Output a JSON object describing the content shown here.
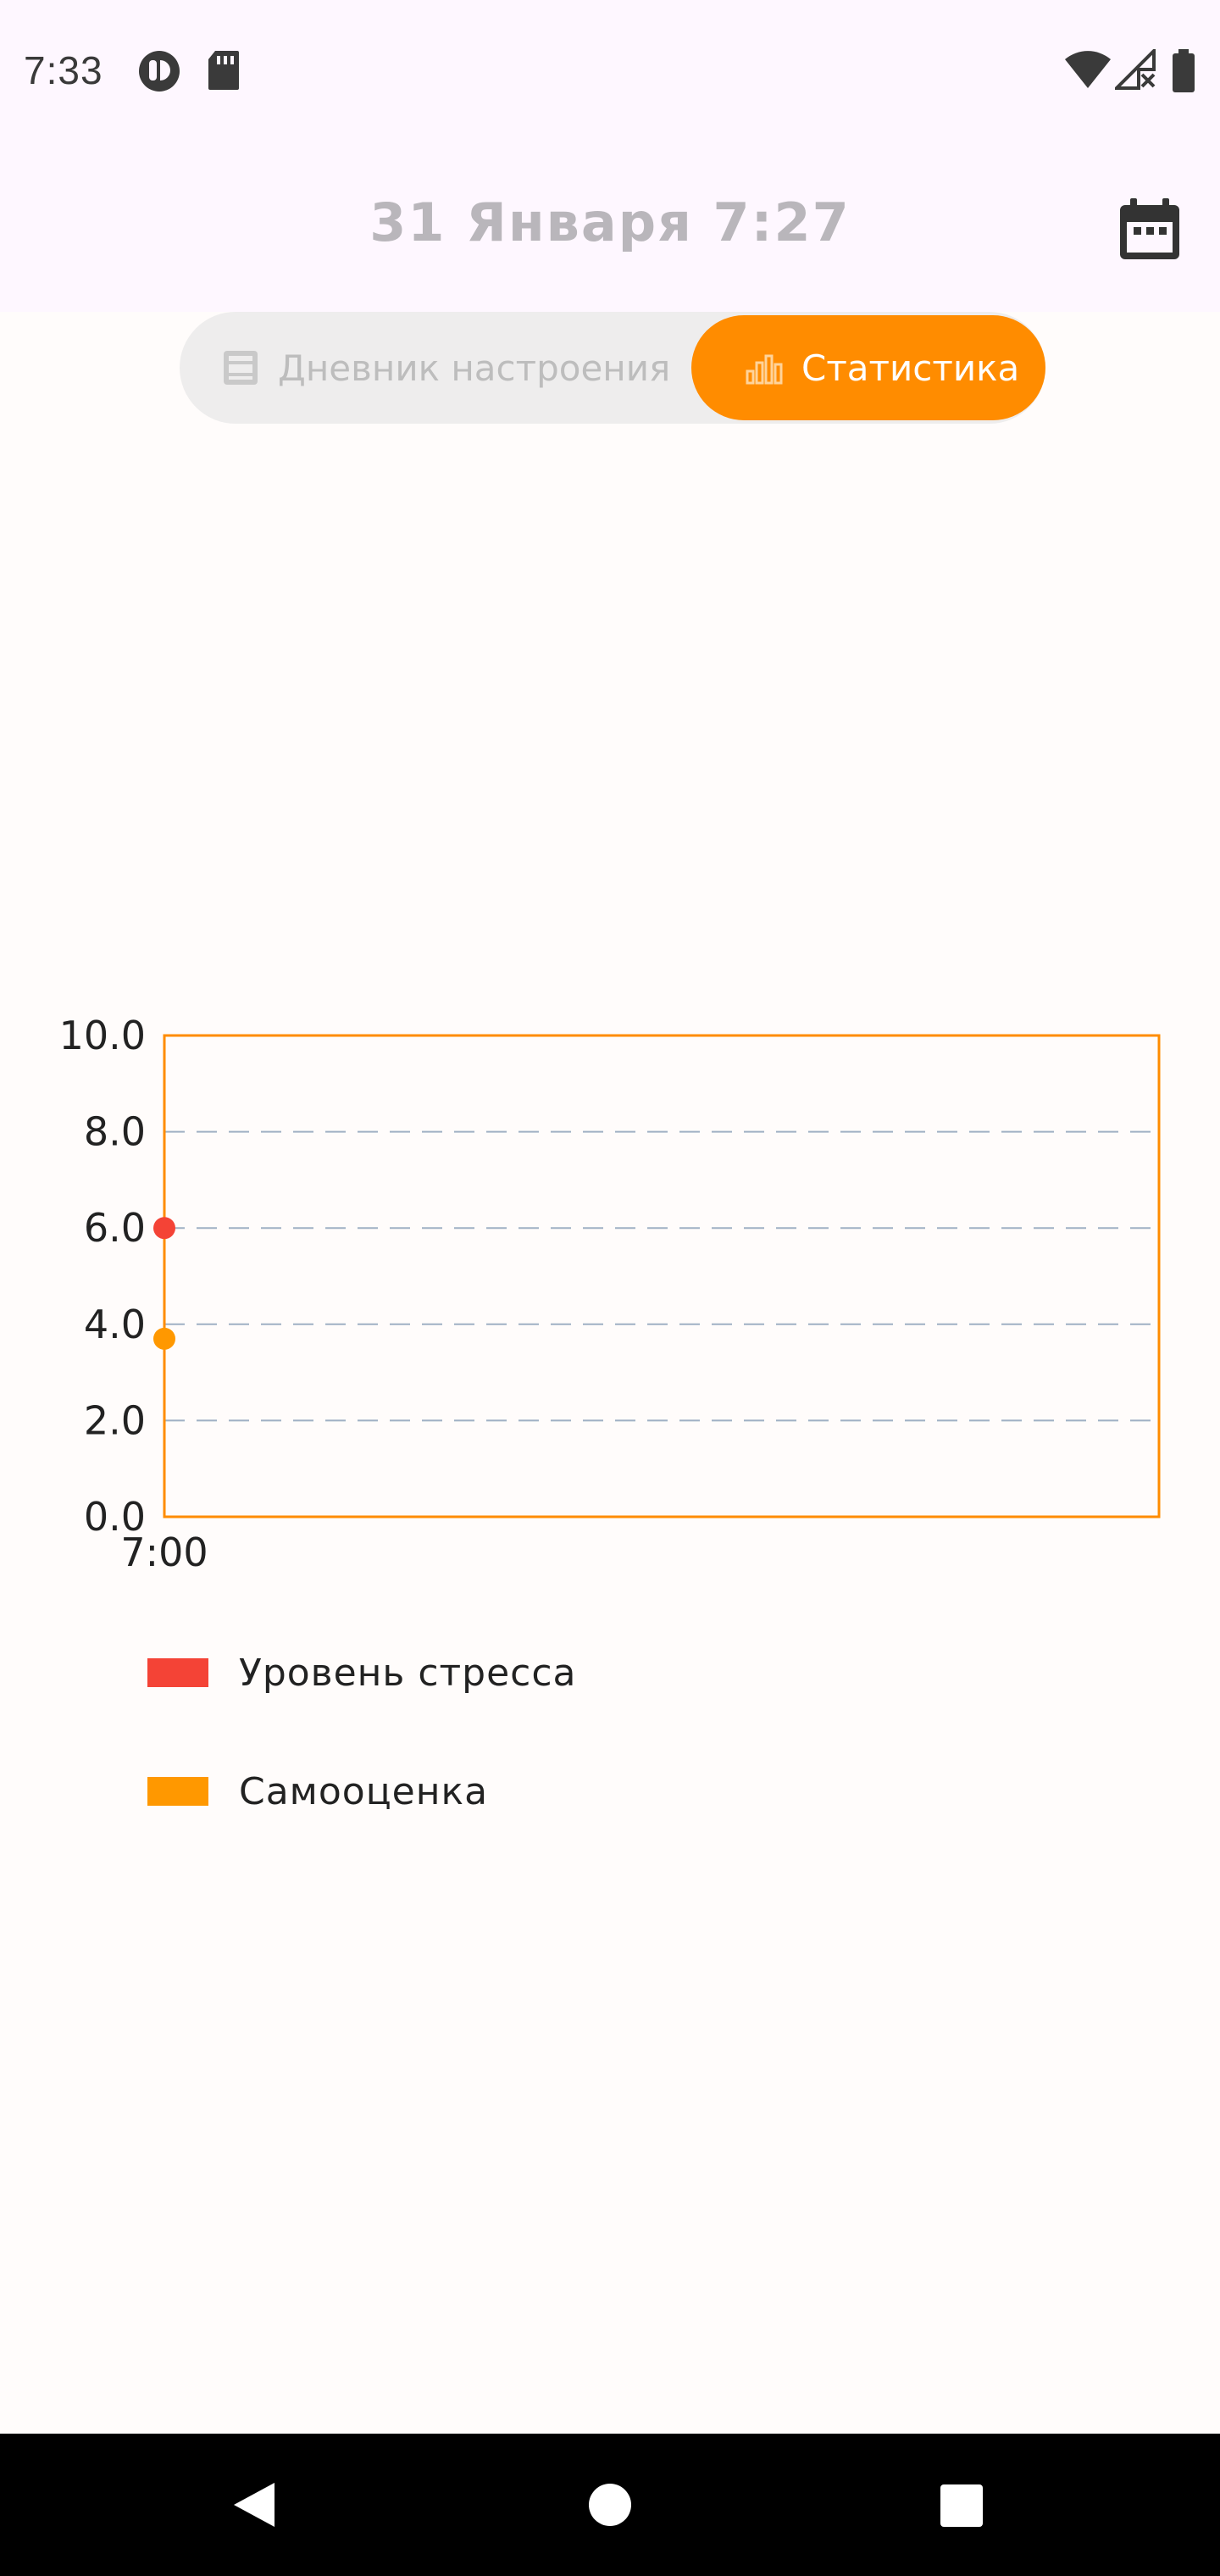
{
  "status_bar": {
    "time": "7:33",
    "icons": [
      "notification-app-icon",
      "sd-card-icon",
      "wifi-icon",
      "signal-no-service-icon",
      "battery-icon"
    ]
  },
  "app_bar": {
    "title": "31 Января 7:27",
    "action_icon": "calendar-icon"
  },
  "tabs": [
    {
      "label": "Дневник настроения",
      "icon": "journal-icon",
      "selected": false
    },
    {
      "label": "Статистика",
      "icon": "bar-chart-icon",
      "selected": true
    }
  ],
  "colors": {
    "accent": "#FF8C00",
    "stress": "#F44336",
    "self_esteem": "#FF9800",
    "grid": "#9FB0C4"
  },
  "chart_data": {
    "type": "line",
    "x": [
      "7:00"
    ],
    "ylim": [
      0,
      10
    ],
    "yticks": [
      "0.0",
      "2.0",
      "4.0",
      "6.0",
      "8.0",
      "10.0"
    ],
    "grid": "horizontal dashed",
    "legend_position": "bottom-left",
    "series": [
      {
        "name": "Уровень стресса",
        "values": [
          6.0
        ]
      },
      {
        "name": "Самооценка",
        "values": [
          3.7
        ]
      }
    ]
  },
  "nav_bar": {
    "buttons": [
      "back-icon",
      "home-icon",
      "recents-icon"
    ]
  }
}
